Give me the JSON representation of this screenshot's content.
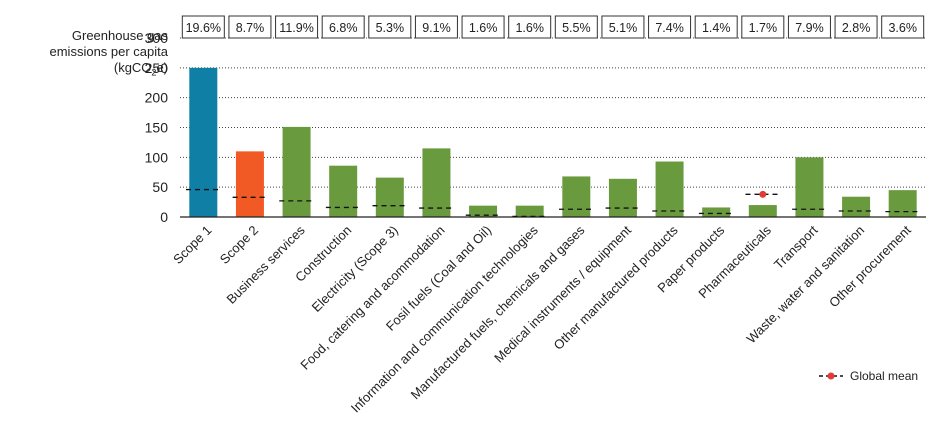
{
  "chart_data": {
    "type": "bar",
    "ylabel_lines": [
      "Greenhouse gas",
      "emissions per capita"
    ],
    "ylabel_unit": {
      "prefix": "(kgCO",
      "sub": "2",
      "suffix": "e)"
    },
    "ylim": [
      0,
      300
    ],
    "yticks": [
      0,
      50,
      100,
      150,
      200,
      250,
      300
    ],
    "grid": true,
    "categories": [
      "Scope 1",
      "Scope 2",
      "Business services",
      "Construction",
      "Electricity (Scope 3)",
      "Food, catering and acommodation",
      "Fosil fuels (Coal and Oil)",
      "Information and communication technologies",
      "Manufactured fuels, chemicals and gases",
      "Medical instruments / equipment",
      "Other manufactured products",
      "Paper products",
      "Pharmaceuticals",
      "Transport",
      "Waste, water and sanitation",
      "Other procurement"
    ],
    "values": [
      250,
      110,
      151,
      86,
      66,
      115,
      19,
      19,
      68,
      64,
      93,
      16,
      20,
      100,
      34,
      45
    ],
    "bar_colors": [
      "#0f7fa6",
      "#f15a24",
      "#6a9a3e",
      "#6a9a3e",
      "#6a9a3e",
      "#6a9a3e",
      "#6a9a3e",
      "#6a9a3e",
      "#6a9a3e",
      "#6a9a3e",
      "#6a9a3e",
      "#6a9a3e",
      "#6a9a3e",
      "#6a9a3e",
      "#6a9a3e",
      "#6a9a3e"
    ],
    "percent_labels": [
      "19.6%",
      "8.7%",
      "11.9%",
      "6.8%",
      "5.3%",
      "9.1%",
      "1.6%",
      "1.6%",
      "5.5%",
      "5.1%",
      "7.4%",
      "1.4%",
      "1.7%",
      "7.9%",
      "2.8%",
      "3.6%"
    ],
    "global_mean": {
      "name": "Global mean",
      "values": [
        46,
        33,
        27,
        16,
        19,
        15,
        3,
        1,
        13,
        15,
        10,
        6,
        38,
        13,
        10,
        9
      ],
      "line_color": "#111111",
      "marker_color": "#e53935",
      "marked_category": "Pharmaceuticals"
    }
  }
}
